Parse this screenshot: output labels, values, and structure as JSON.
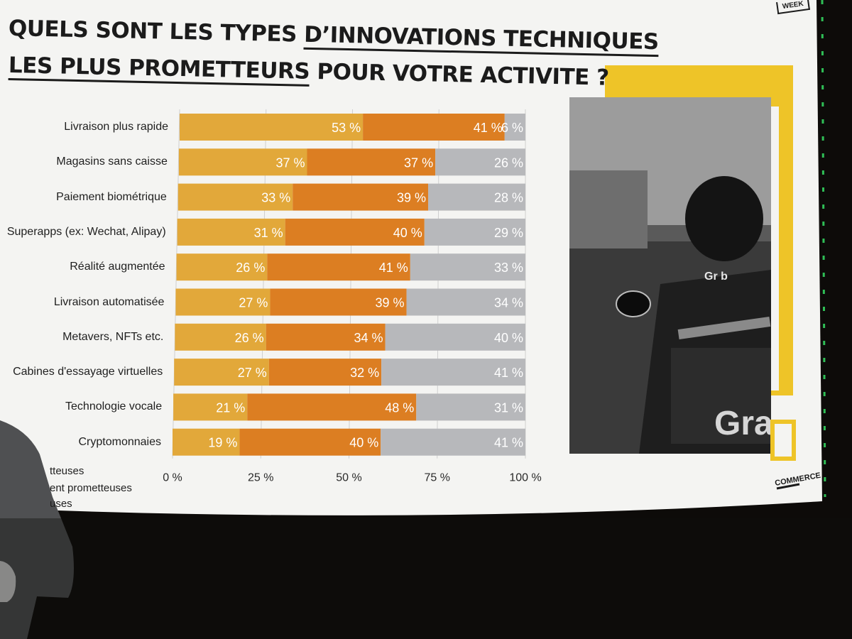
{
  "title": {
    "line1_prefix": "QUELS SONT LES TYPES ",
    "line1_underlined": "D’INNOVATIONS TECHNIQUES",
    "line2_underlined": "LES PLUS PROMETTEURS",
    "line2_suffix": " POUR VOTRE ACTIVITE ?"
  },
  "brand": {
    "top_tag": "WEEK",
    "bottom_logo": "COMMERCE"
  },
  "photo": {
    "helmet_logo": "Gr b",
    "box_logo": "Gra"
  },
  "legend": [
    "tteuses",
    "ent prometteuses",
    "uses"
  ],
  "colors": {
    "slide_bg": "#f4f4f2",
    "series_1": "#e2a83a",
    "series_2": "#dc7e22",
    "series_3": "#b7b8bb",
    "accent_yellow": "#eec428"
  },
  "chart_data": {
    "type": "bar",
    "orientation": "horizontal",
    "stacked": true,
    "percent_stacked": true,
    "categories": [
      "Livraison plus rapide",
      "Magasins sans caisse",
      "Paiement biométrique",
      "Superapps (ex: Wechat, Alipay)",
      "Réalité augmentée",
      "Livraison automatisée",
      "Metavers, NFTs etc.",
      "Cabines d'essayage virtuelles",
      "Technologie vocale",
      "Cryptomonnaies"
    ],
    "series": [
      {
        "values": [
          53,
          37,
          33,
          31,
          26,
          27,
          26,
          27,
          21,
          19
        ]
      },
      {
        "values": [
          41,
          37,
          39,
          40,
          41,
          39,
          34,
          32,
          48,
          40
        ]
      },
      {
        "values": [
          6,
          26,
          28,
          29,
          33,
          34,
          40,
          41,
          31,
          41
        ]
      }
    ],
    "data_labels": [
      [
        "53 %",
        "41 %",
        "6 %"
      ],
      [
        "37 %",
        "37 %",
        "26 %"
      ],
      [
        "33 %",
        "39 %",
        "28 %"
      ],
      [
        "31 %",
        "40 %",
        "29 %"
      ],
      [
        "26 %",
        "41 %",
        "33 %"
      ],
      [
        "27 %",
        "39 %",
        "34 %"
      ],
      [
        "26 %",
        "34 %",
        "40 %"
      ],
      [
        "27 %",
        "32 %",
        "41 %"
      ],
      [
        "21 %",
        "48 %",
        "31 %"
      ],
      [
        "19 %",
        "40 %",
        "41 %"
      ]
    ],
    "x_ticks": [
      "0 %",
      "25 %",
      "50 %",
      "75 %",
      "100 %"
    ],
    "xlim": [
      0,
      100
    ],
    "grid": true
  }
}
